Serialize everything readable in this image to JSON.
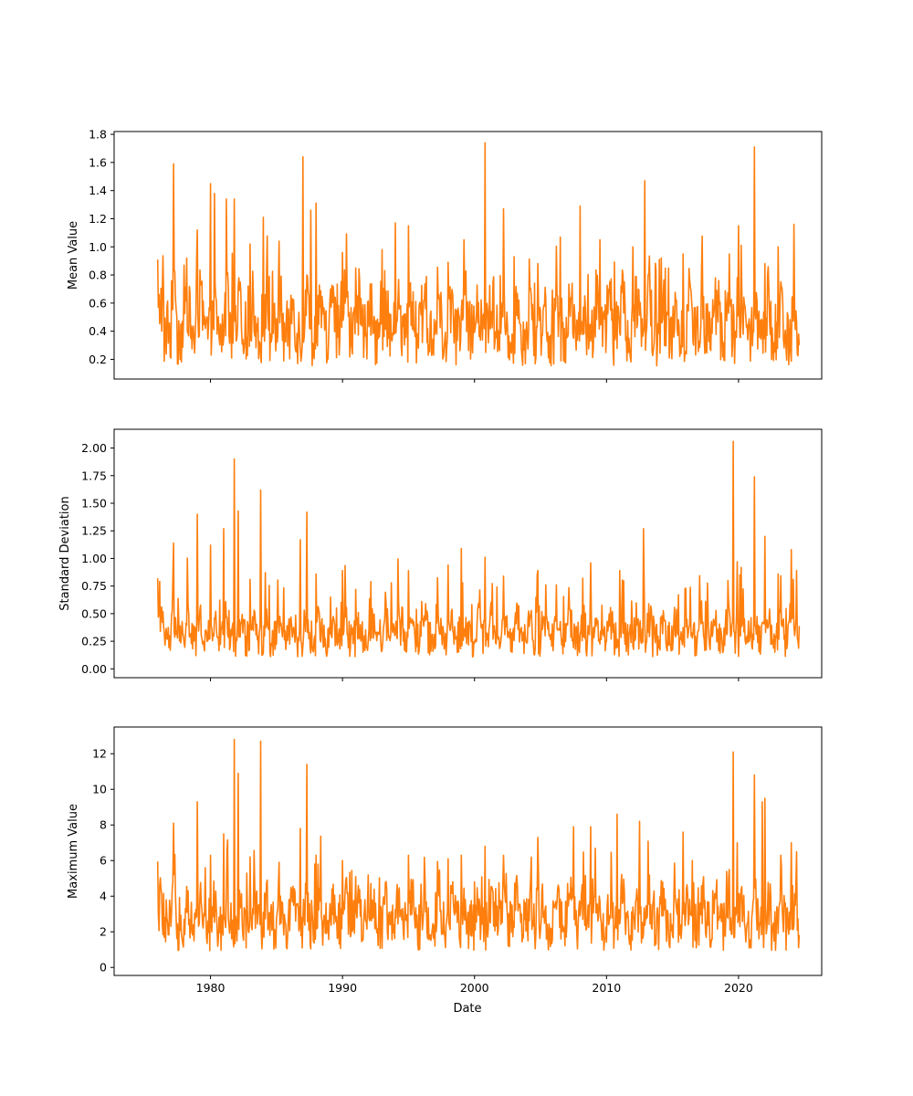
{
  "colors": {
    "series": "#ff7f0e",
    "axis": "#000000",
    "background": "#ffffff"
  },
  "shared_x": {
    "label": "Date",
    "ticks": [
      1980,
      1990,
      2000,
      2010,
      2020
    ],
    "tick_labels": [
      "1980",
      "1990",
      "2000",
      "2010",
      "2020"
    ],
    "range": [
      1972.7,
      2026.3
    ],
    "series_start": 1976.0,
    "series_end": 2024.6
  },
  "chart_data": [
    {
      "type": "line",
      "ylabel": "Mean Value",
      "ylim": [
        0.06,
        1.82
      ],
      "yticks": [
        0.2,
        0.4,
        0.6,
        0.8,
        1.0,
        1.2,
        1.4,
        1.6,
        1.8
      ],
      "ytick_labels": [
        "0.2",
        "0.4",
        "0.6",
        "0.8",
        "1.0",
        "1.2",
        "1.4",
        "1.6",
        "1.8"
      ],
      "xtick_labels_visible": false,
      "baseline": 0.42,
      "floor": 0.14,
      "peaks": [
        {
          "x": 1976.0,
          "y": 0.91
        },
        {
          "x": 1977.2,
          "y": 1.59
        },
        {
          "x": 1978.0,
          "y": 0.87
        },
        {
          "x": 1979.0,
          "y": 1.12
        },
        {
          "x": 1980.0,
          "y": 1.45
        },
        {
          "x": 1980.3,
          "y": 1.38
        },
        {
          "x": 1981.2,
          "y": 1.34
        },
        {
          "x": 1981.8,
          "y": 1.34
        },
        {
          "x": 1983.0,
          "y": 1.02
        },
        {
          "x": 1984.0,
          "y": 1.21
        },
        {
          "x": 1985.2,
          "y": 1.04
        },
        {
          "x": 1987.0,
          "y": 1.64
        },
        {
          "x": 1987.6,
          "y": 1.26
        },
        {
          "x": 1988.0,
          "y": 1.31
        },
        {
          "x": 1990.0,
          "y": 0.96
        },
        {
          "x": 1991.0,
          "y": 0.85
        },
        {
          "x": 1993.0,
          "y": 0.98
        },
        {
          "x": 1994.0,
          "y": 1.17
        },
        {
          "x": 1995.0,
          "y": 1.15
        },
        {
          "x": 1998.0,
          "y": 0.89
        },
        {
          "x": 1999.2,
          "y": 1.05
        },
        {
          "x": 2000.8,
          "y": 1.74
        },
        {
          "x": 2002.2,
          "y": 1.27
        },
        {
          "x": 2003.0,
          "y": 0.93
        },
        {
          "x": 2004.8,
          "y": 0.88
        },
        {
          "x": 2006.5,
          "y": 1.07
        },
        {
          "x": 2008.0,
          "y": 1.29
        },
        {
          "x": 2009.5,
          "y": 1.05
        },
        {
          "x": 2012.0,
          "y": 1.0
        },
        {
          "x": 2012.9,
          "y": 1.47
        },
        {
          "x": 2014.0,
          "y": 0.91
        },
        {
          "x": 2015.8,
          "y": 0.95
        },
        {
          "x": 2017.2,
          "y": 0.83
        },
        {
          "x": 2018.5,
          "y": 0.76
        },
        {
          "x": 2019.3,
          "y": 0.95
        },
        {
          "x": 2020.0,
          "y": 1.15
        },
        {
          "x": 2021.2,
          "y": 1.71
        },
        {
          "x": 2022.0,
          "y": 0.88
        },
        {
          "x": 2023.0,
          "y": 1.0
        },
        {
          "x": 2024.2,
          "y": 1.16
        }
      ]
    },
    {
      "type": "line",
      "ylabel": "Standard Deviation",
      "ylim": [
        -0.08,
        2.17
      ],
      "yticks": [
        0.0,
        0.25,
        0.5,
        0.75,
        1.0,
        1.25,
        1.5,
        1.75,
        2.0
      ],
      "ytick_labels": [
        "0.00",
        "0.25",
        "0.50",
        "0.75",
        "1.00",
        "1.25",
        "1.50",
        "1.75",
        "2.00"
      ],
      "xtick_labels_visible": false,
      "baseline": 0.3,
      "floor": 0.02,
      "peaks": [
        {
          "x": 1976.0,
          "y": 0.82
        },
        {
          "x": 1977.2,
          "y": 1.14
        },
        {
          "x": 1979.0,
          "y": 1.4
        },
        {
          "x": 1980.0,
          "y": 1.12
        },
        {
          "x": 1981.0,
          "y": 1.27
        },
        {
          "x": 1981.8,
          "y": 1.9
        },
        {
          "x": 1982.1,
          "y": 1.43
        },
        {
          "x": 1983.0,
          "y": 0.81
        },
        {
          "x": 1983.8,
          "y": 1.62
        },
        {
          "x": 1986.8,
          "y": 1.17
        },
        {
          "x": 1987.3,
          "y": 1.42
        },
        {
          "x": 1988.0,
          "y": 0.86
        },
        {
          "x": 1990.0,
          "y": 0.89
        },
        {
          "x": 1991.0,
          "y": 0.72
        },
        {
          "x": 1995.0,
          "y": 0.89
        },
        {
          "x": 1998.0,
          "y": 0.94
        },
        {
          "x": 1999.0,
          "y": 1.09
        },
        {
          "x": 2000.8,
          "y": 1.01
        },
        {
          "x": 2002.2,
          "y": 0.84
        },
        {
          "x": 2004.8,
          "y": 0.89
        },
        {
          "x": 2008.2,
          "y": 0.82
        },
        {
          "x": 2008.8,
          "y": 0.96
        },
        {
          "x": 2011.0,
          "y": 0.89
        },
        {
          "x": 2012.8,
          "y": 1.27
        },
        {
          "x": 2016.0,
          "y": 0.73
        },
        {
          "x": 2017.5,
          "y": 0.61
        },
        {
          "x": 2019.2,
          "y": 0.8
        },
        {
          "x": 2019.6,
          "y": 2.06
        },
        {
          "x": 2019.9,
          "y": 0.97
        },
        {
          "x": 2021.2,
          "y": 1.74
        },
        {
          "x": 2022.0,
          "y": 1.2
        },
        {
          "x": 2023.0,
          "y": 0.86
        },
        {
          "x": 2024.0,
          "y": 1.08
        },
        {
          "x": 2024.4,
          "y": 0.89
        }
      ]
    },
    {
      "type": "line",
      "ylabel": "Maximum Value",
      "ylim": [
        -0.45,
        13.5
      ],
      "yticks": [
        0,
        2,
        4,
        6,
        8,
        10,
        12
      ],
      "ytick_labels": [
        "0",
        "2",
        "4",
        "6",
        "8",
        "10",
        "12"
      ],
      "xtick_labels_visible": true,
      "baseline": 2.6,
      "floor": 0.3,
      "peaks": [
        {
          "x": 1976.0,
          "y": 5.95
        },
        {
          "x": 1977.2,
          "y": 8.1
        },
        {
          "x": 1979.0,
          "y": 9.3
        },
        {
          "x": 1980.0,
          "y": 6.3
        },
        {
          "x": 1981.0,
          "y": 7.5
        },
        {
          "x": 1981.8,
          "y": 12.8
        },
        {
          "x": 1982.1,
          "y": 10.9
        },
        {
          "x": 1983.0,
          "y": 6.2
        },
        {
          "x": 1983.8,
          "y": 12.7
        },
        {
          "x": 1985.2,
          "y": 5.9
        },
        {
          "x": 1986.8,
          "y": 7.8
        },
        {
          "x": 1987.3,
          "y": 11.4
        },
        {
          "x": 1988.0,
          "y": 6.3
        },
        {
          "x": 1990.0,
          "y": 6.0
        },
        {
          "x": 1991.0,
          "y": 5.1
        },
        {
          "x": 1995.0,
          "y": 6.3
        },
        {
          "x": 1998.0,
          "y": 6.1
        },
        {
          "x": 1999.0,
          "y": 6.3
        },
        {
          "x": 2000.8,
          "y": 6.8
        },
        {
          "x": 2002.2,
          "y": 6.3
        },
        {
          "x": 2004.8,
          "y": 7.3
        },
        {
          "x": 2007.5,
          "y": 7.9
        },
        {
          "x": 2008.8,
          "y": 7.9
        },
        {
          "x": 2010.8,
          "y": 8.6
        },
        {
          "x": 2012.5,
          "y": 8.2
        },
        {
          "x": 2015.8,
          "y": 7.6
        },
        {
          "x": 2016.5,
          "y": 6.0
        },
        {
          "x": 2019.3,
          "y": 5.5
        },
        {
          "x": 2019.6,
          "y": 12.1
        },
        {
          "x": 2019.9,
          "y": 7.0
        },
        {
          "x": 2021.2,
          "y": 10.8
        },
        {
          "x": 2021.8,
          "y": 9.3
        },
        {
          "x": 2022.0,
          "y": 9.5
        },
        {
          "x": 2023.2,
          "y": 6.3
        },
        {
          "x": 2024.0,
          "y": 7.0
        },
        {
          "x": 2024.4,
          "y": 6.5
        }
      ]
    }
  ]
}
